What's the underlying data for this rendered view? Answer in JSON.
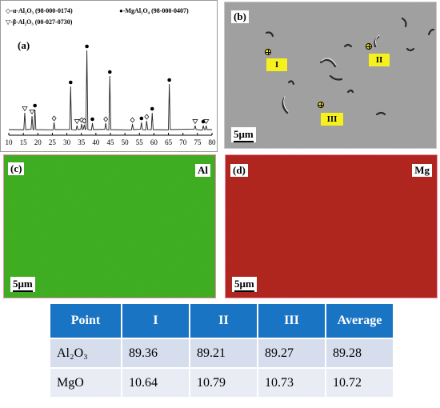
{
  "panel_a": {
    "tag": "(a)",
    "legend": {
      "alpha": "◇-α-Al₂O₃ (98-000-0174)",
      "spinel": "●-MgAl₂O₄ (98-000-0407)",
      "beta": "▽-β-Al₂O₃ (00-027-0730)"
    },
    "chart_data": {
      "type": "line",
      "xlabel": "",
      "ylabel": "",
      "xlim": [
        10,
        80
      ],
      "x_ticks": [
        "10",
        "15",
        "20",
        "25",
        "30",
        "35",
        "40",
        "45",
        "50",
        "55",
        "60",
        "65",
        "70",
        "75",
        "80"
      ],
      "series": [
        {
          "peaks": [
            {
              "x": 15.5,
              "y": 22,
              "phase": "beta"
            },
            {
              "x": 18.0,
              "y": 18,
              "phase": "beta"
            },
            {
              "x": 19.0,
              "y": 26,
              "phase": "spinel"
            },
            {
              "x": 25.6,
              "y": 10,
              "phase": "alpha"
            },
            {
              "x": 31.3,
              "y": 55,
              "phase": "spinel"
            },
            {
              "x": 33.5,
              "y": 6,
              "phase": "beta"
            },
            {
              "x": 35.1,
              "y": 8,
              "phase": "alpha"
            },
            {
              "x": 36.0,
              "y": 7,
              "phase": "alpha"
            },
            {
              "x": 36.9,
              "y": 100,
              "phase": "spinel"
            },
            {
              "x": 38.8,
              "y": 9,
              "phase": "spinel"
            },
            {
              "x": 43.4,
              "y": 9,
              "phase": "alpha"
            },
            {
              "x": 44.8,
              "y": 68,
              "phase": "spinel"
            },
            {
              "x": 52.6,
              "y": 8,
              "phase": "alpha"
            },
            {
              "x": 55.7,
              "y": 10,
              "phase": "spinel"
            },
            {
              "x": 57.5,
              "y": 12,
              "phase": "alpha"
            },
            {
              "x": 59.4,
              "y": 22,
              "phase": "spinel"
            },
            {
              "x": 65.3,
              "y": 58,
              "phase": "spinel"
            },
            {
              "x": 74.2,
              "y": 6,
              "phase": "beta"
            },
            {
              "x": 77.0,
              "y": 6,
              "phase": "spinel"
            },
            {
              "x": 78.0,
              "y": 6,
              "phase": "beta"
            }
          ]
        }
      ]
    }
  },
  "panel_b": {
    "tag": "(b)",
    "scalebar": "5μm",
    "points": [
      {
        "label": "I"
      },
      {
        "label": "II"
      },
      {
        "label": "III"
      }
    ]
  },
  "panel_c": {
    "tag": "(c)",
    "element": "Al",
    "scalebar": "5μm",
    "color": "#3fb21f"
  },
  "panel_d": {
    "tag": "(d)",
    "element": "Mg",
    "scalebar": "5μm",
    "color": "#c4261a"
  },
  "table": {
    "header": [
      "Point",
      "I",
      "II",
      "III",
      "Average"
    ],
    "rows": [
      {
        "label": "Al₂O₃",
        "values": [
          "89.36",
          "89.21",
          "89.27",
          "89.28"
        ]
      },
      {
        "label": "MgO",
        "values": [
          "10.64",
          "10.79",
          "10.73",
          "10.72"
        ]
      }
    ]
  }
}
